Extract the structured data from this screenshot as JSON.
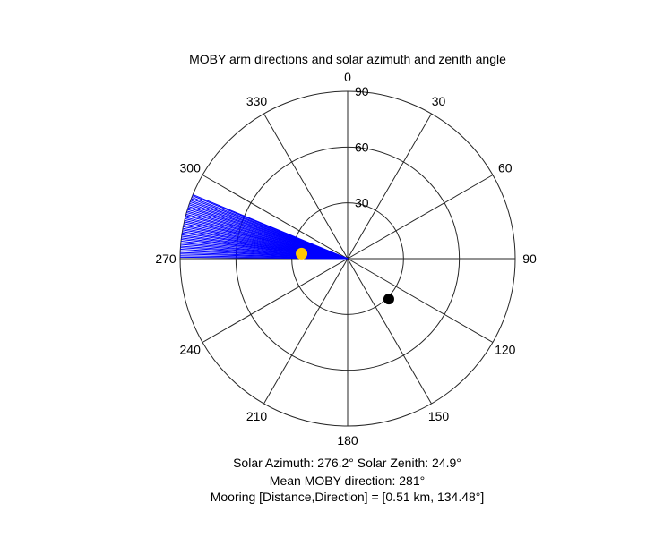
{
  "chart_data": {
    "type": "polar",
    "title": "MOBY arm directions and solar azimuth and zenith angle",
    "angle_ticks": [
      {
        "deg": 0,
        "label": "0"
      },
      {
        "deg": 30,
        "label": "30"
      },
      {
        "deg": 60,
        "label": "60"
      },
      {
        "deg": 90,
        "label": "90"
      },
      {
        "deg": 120,
        "label": "120"
      },
      {
        "deg": 150,
        "label": "150"
      },
      {
        "deg": 180,
        "label": "180"
      },
      {
        "deg": 210,
        "label": "210"
      },
      {
        "deg": 240,
        "label": "240"
      },
      {
        "deg": 270,
        "label": "270"
      },
      {
        "deg": 300,
        "label": "300"
      },
      {
        "deg": 330,
        "label": "330"
      }
    ],
    "radial_ticks": [
      {
        "value": 30,
        "label": "30"
      },
      {
        "value": 60,
        "label": "60"
      },
      {
        "value": 90,
        "label": "90"
      }
    ],
    "rlim": [
      0,
      90
    ],
    "angle_convention": "clockwise from top (compass)",
    "arm_directions": {
      "color": "#0000ff",
      "radius": 90,
      "angles_deg": [
        270.5,
        271.0,
        271.6,
        272.1,
        272.7,
        273.2,
        273.8,
        274.3,
        274.9,
        275.4,
        276.0,
        276.6,
        277.1,
        277.7,
        278.2,
        278.8,
        279.3,
        279.9,
        280.4,
        281.0,
        281.5,
        282.1,
        282.7,
        283.2,
        283.8,
        284.3,
        284.9,
        285.4,
        286.0,
        286.5,
        287.1,
        287.7,
        288.2,
        288.8,
        289.3,
        289.9,
        290.4,
        291.0,
        291.5,
        292.1,
        292.5
      ]
    },
    "solar_marker": {
      "color": "#ffc800",
      "azimuth_deg": 276.2,
      "zenith_deg": 24.9
    },
    "mooring_marker": {
      "color": "#000000",
      "direction_deg": 134.48,
      "r": 31
    }
  },
  "info_lines": {
    "solar": "Solar Azimuth: 276.2°    Solar Zenith: 24.9°",
    "mean_direction": "Mean MOBY direction: 281°",
    "mooring": "Mooring [Distance,Direction] = [0.51 km, 134.48°]"
  }
}
